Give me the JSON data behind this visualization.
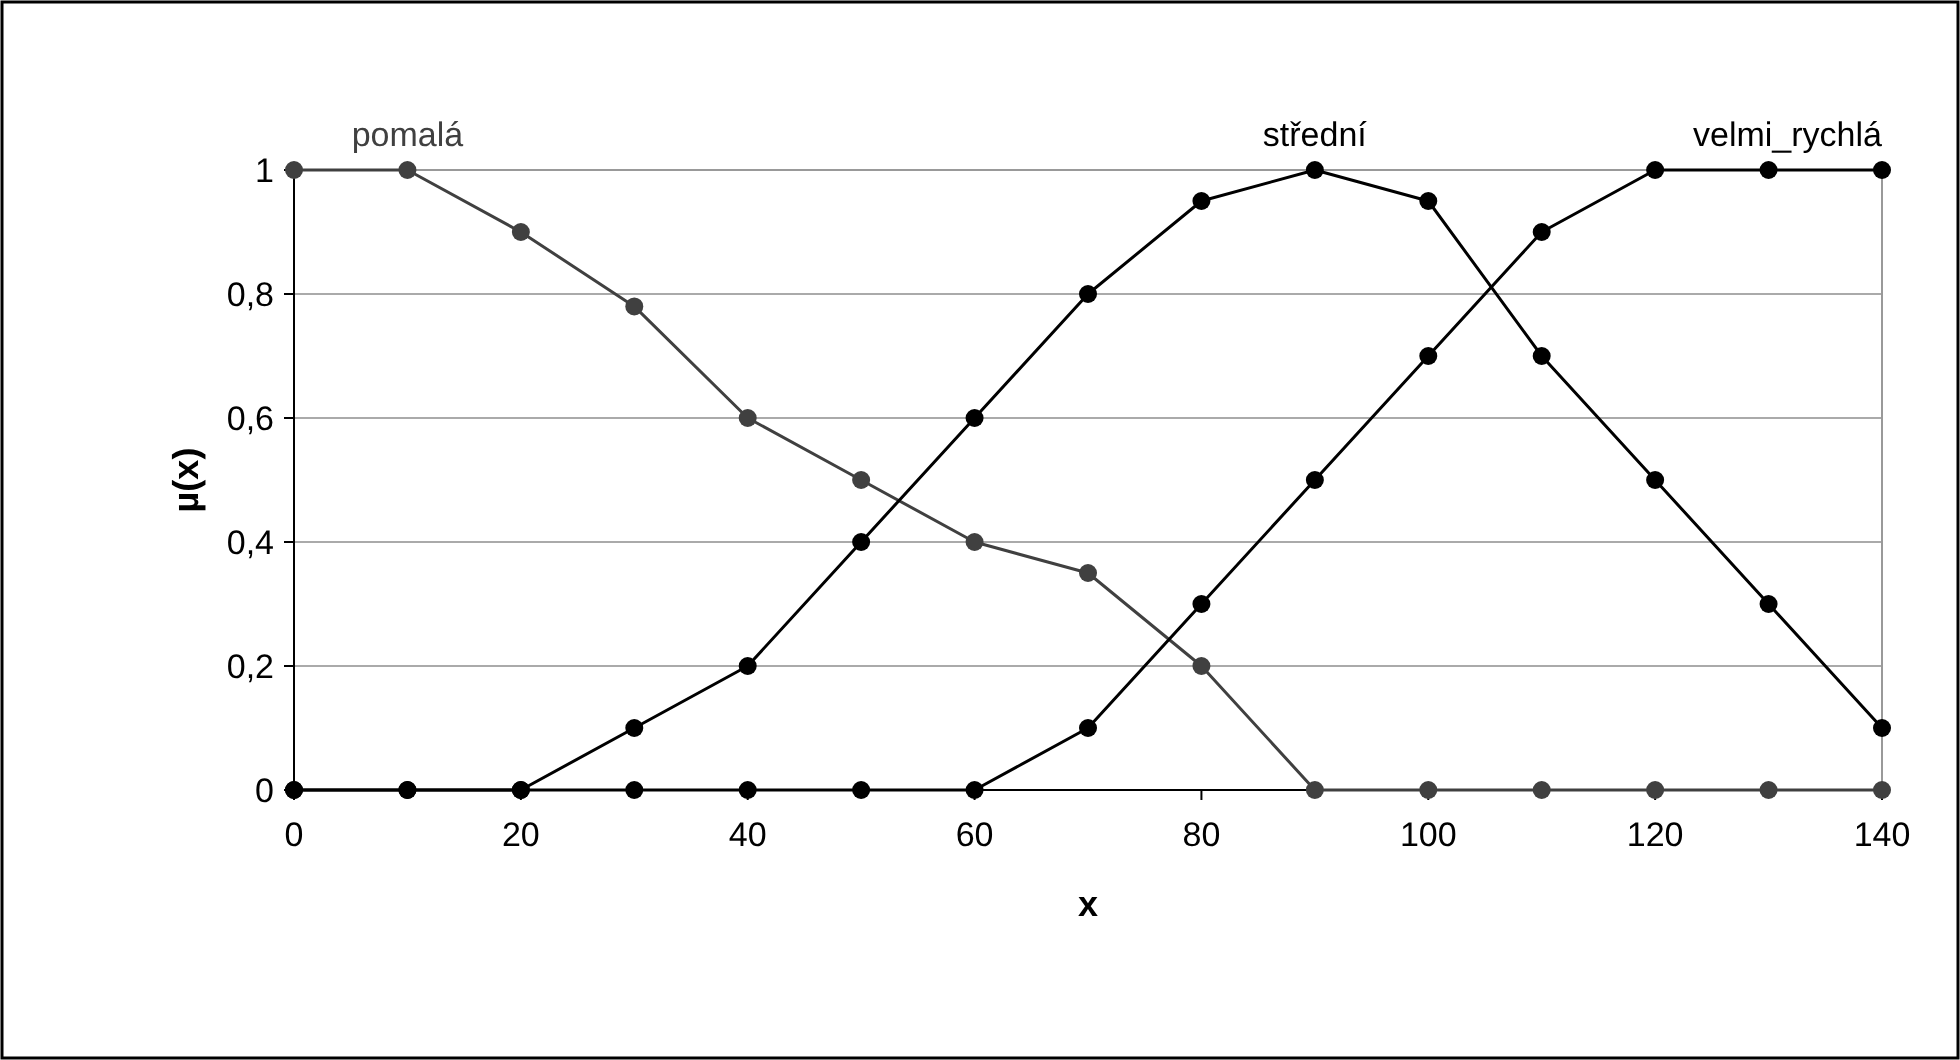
{
  "chart_data": {
    "type": "line",
    "xlabel": "x",
    "ylabel": "µ(x)",
    "x": [
      0,
      10,
      20,
      30,
      40,
      50,
      60,
      70,
      80,
      90,
      100,
      110,
      120,
      130,
      140
    ],
    "series": [
      {
        "name": "pomalá",
        "color": "#404040",
        "values": [
          1,
          1,
          0.9,
          0.78,
          0.6,
          0.5,
          0.4,
          0.35,
          0.2,
          0,
          0,
          0,
          0,
          0,
          0
        ]
      },
      {
        "name": "střední",
        "color": "#000000",
        "values": [
          0,
          0,
          0,
          0.1,
          0.2,
          0.4,
          0.6,
          0.8,
          0.95,
          1,
          0.95,
          0.7,
          0.5,
          0.3,
          0.1
        ]
      },
      {
        "name": "velmi_rychlá",
        "color": "#000000",
        "values": [
          0,
          0,
          0,
          0,
          0,
          0,
          0,
          0.1,
          0.3,
          0.5,
          0.7,
          0.9,
          1,
          1,
          1
        ]
      }
    ],
    "xlim": [
      0,
      140
    ],
    "xticks": [
      0,
      20,
      40,
      60,
      80,
      100,
      120,
      140
    ],
    "ylim": [
      0,
      1
    ],
    "yticks": [
      0,
      {
        "value": 0.2,
        "label": "0,2"
      },
      {
        "value": 0.4,
        "label": "0,4"
      },
      {
        "value": 0.6,
        "label": "0,6"
      },
      {
        "value": 0.8,
        "label": "0,8"
      },
      1
    ],
    "grid": "y",
    "marker": "circle",
    "line_style": "solid"
  }
}
